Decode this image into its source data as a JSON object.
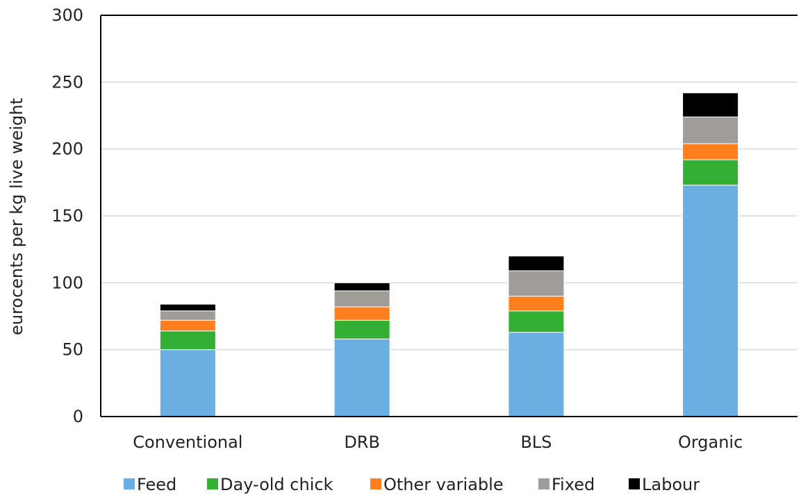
{
  "chart_data": {
    "type": "bar",
    "stacked": true,
    "title": "",
    "xlabel": "",
    "ylabel": "eurocents per kg live weight",
    "ylim": [
      0,
      300
    ],
    "yticks": [
      0,
      50,
      100,
      150,
      200,
      250,
      300
    ],
    "grid": "horizontal",
    "legend_position": "bottom",
    "categories": [
      "Conventional",
      "DRB",
      "BLS",
      "Organic"
    ],
    "series": [
      {
        "name": "Feed",
        "color": "#6aaee2",
        "values": [
          50,
          58,
          63,
          173
        ]
      },
      {
        "name": "Day-old chick",
        "color": "#33b033",
        "values": [
          14,
          14,
          16,
          19
        ]
      },
      {
        "name": "Other variable",
        "color": "#ff7f1e",
        "values": [
          8,
          10,
          11,
          12
        ]
      },
      {
        "name": "Fixed",
        "color": "#a09c98",
        "values": [
          7,
          12,
          19,
          20
        ]
      },
      {
        "name": "Labour",
        "color": "#000000",
        "values": [
          5,
          6,
          11,
          18
        ]
      }
    ]
  }
}
